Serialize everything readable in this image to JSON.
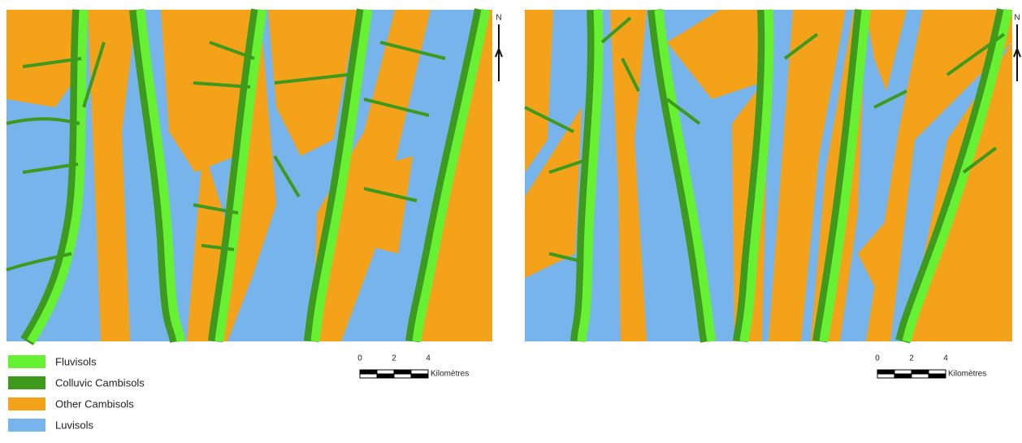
{
  "maps": [
    {
      "north_arrow": "N",
      "scale_bar": {
        "ticks": [
          0,
          2,
          4
        ],
        "unit": "Kilomètres"
      }
    },
    {
      "north_arrow": "N",
      "scale_bar": {
        "ticks": [
          0,
          2,
          4
        ],
        "unit": "Kilomètres"
      }
    }
  ],
  "legend": [
    {
      "label": "Fluvisols",
      "color": "#66f233"
    },
    {
      "label": "Colluvic Cambisols",
      "color": "#3d9a1c"
    },
    {
      "label": "Other Cambisols",
      "color": "#f5a21b"
    },
    {
      "label": "Luvisols",
      "color": "#77b4ec"
    }
  ]
}
